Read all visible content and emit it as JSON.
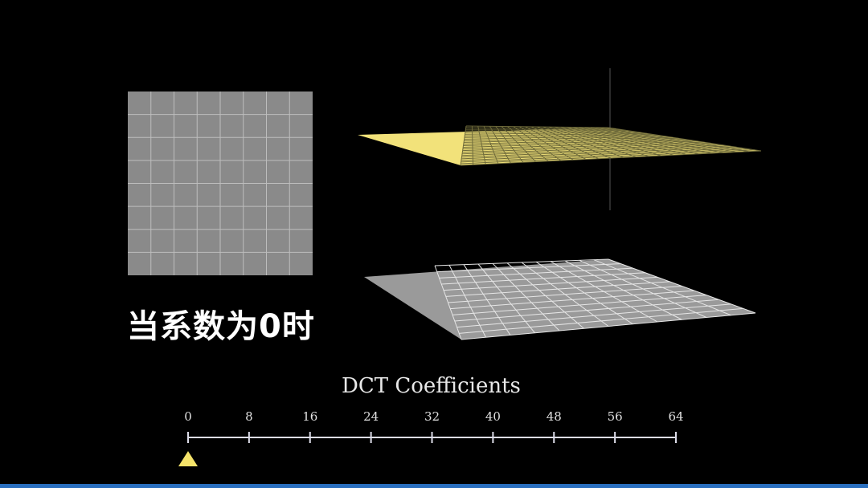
{
  "caption": "当系数为0时",
  "axis": {
    "title": "DCT Coefficients",
    "min": 0,
    "max": 64,
    "ticks": [
      "0",
      "8",
      "16",
      "24",
      "32",
      "40",
      "48",
      "56",
      "64"
    ],
    "marker_value": 0
  },
  "block_size": 8,
  "colors": {
    "yellow_surface": "#f2e27a",
    "gray_surface": "#9a9a9a",
    "grid_line": "#ffffff",
    "marker": "#f5e36a",
    "axis_line": "#dcdce8"
  }
}
